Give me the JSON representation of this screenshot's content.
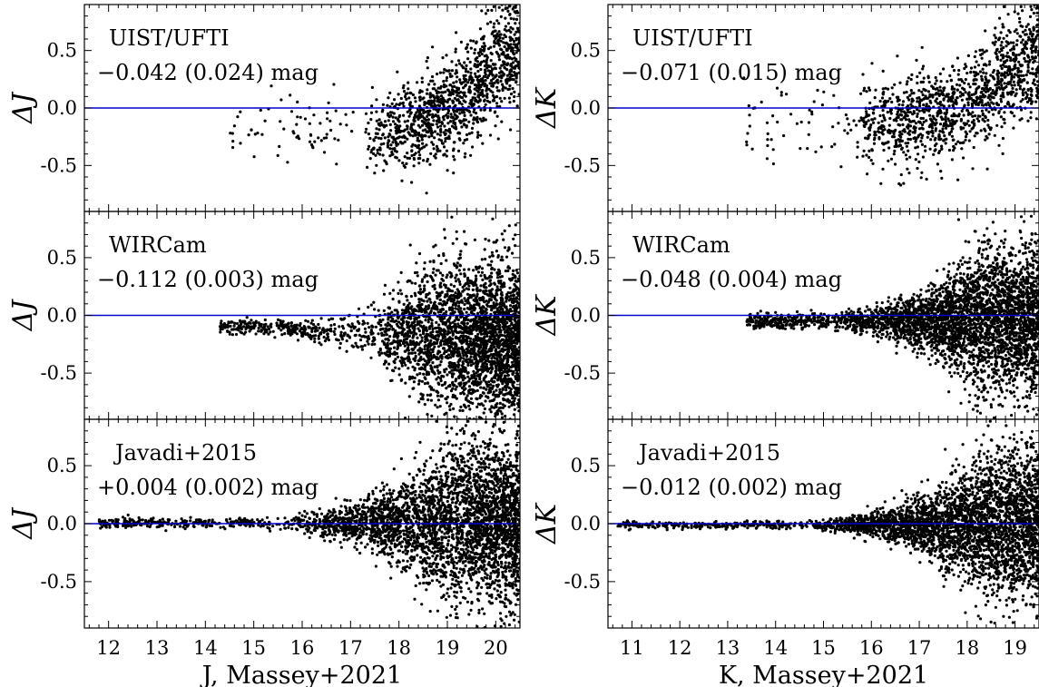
{
  "chart_data": [
    {
      "type": "scatter",
      "panel": "J-UIST/UFTI",
      "ylabel": "ΔJ",
      "xlabel": "",
      "xlim": [
        11.5,
        20.5
      ],
      "ylim": [
        -0.9,
        0.9
      ],
      "xticks": [
        12,
        13,
        14,
        15,
        16,
        17,
        18,
        19,
        20
      ],
      "yticks": [
        -0.5,
        0.0,
        0.5
      ],
      "ytick_labels": [
        "-0.5",
        "0.0",
        "0.5"
      ],
      "reference_line": 0.0,
      "line_color": "#0000cc",
      "annotation_name": "UIST/UFTI",
      "annotation_offset": "−0.042 (0.024) mag",
      "offset_value": -0.042,
      "offset_error": 0.024,
      "x_range_populated": [
        14.5,
        20.5
      ],
      "grid": false
    },
    {
      "type": "scatter",
      "panel": "J-WIRCam",
      "ylabel": "ΔJ",
      "xlabel": "",
      "xlim": [
        11.5,
        20.5
      ],
      "ylim": [
        -0.9,
        0.9
      ],
      "xticks": [
        12,
        13,
        14,
        15,
        16,
        17,
        18,
        19,
        20
      ],
      "yticks": [
        -0.5,
        0.0,
        0.5
      ],
      "ytick_labels": [
        "-0.5",
        "0.0",
        "0.5"
      ],
      "reference_line": 0.0,
      "line_color": "#0000cc",
      "annotation_name": "WIRCam",
      "annotation_offset": "−0.112 (0.003) mag",
      "offset_value": -0.112,
      "offset_error": 0.003,
      "x_range_populated": [
        14.2,
        20.5
      ],
      "grid": false
    },
    {
      "type": "scatter",
      "panel": "J-Javadi+2015",
      "ylabel": "ΔJ",
      "xlabel": "J, Massey+2021",
      "xlim": [
        11.5,
        20.5
      ],
      "ylim": [
        -0.9,
        0.9
      ],
      "xticks": [
        12,
        13,
        14,
        15,
        16,
        17,
        18,
        19,
        20
      ],
      "xtick_labels": [
        "12",
        "13",
        "14",
        "15",
        "16",
        "17",
        "18",
        "19",
        "20"
      ],
      "yticks": [
        -0.5,
        0.0,
        0.5
      ],
      "ytick_labels": [
        "-0.5",
        "0.0",
        "0.5"
      ],
      "reference_line": 0.0,
      "line_color": "#0000cc",
      "annotation_name": "Javadi+2015",
      "annotation_offset": "+0.004 (0.002) mag",
      "offset_value": 0.004,
      "offset_error": 0.002,
      "x_range_populated": [
        11.8,
        20.5
      ],
      "grid": false
    },
    {
      "type": "scatter",
      "panel": "K-UIST/UFTI",
      "ylabel": "ΔK",
      "xlabel": "",
      "xlim": [
        10.5,
        19.5
      ],
      "ylim": [
        -0.9,
        0.9
      ],
      "xticks": [
        11,
        12,
        13,
        14,
        15,
        16,
        17,
        18,
        19
      ],
      "yticks": [
        -0.5,
        0.0,
        0.5
      ],
      "ytick_labels": [
        "-0.5",
        "0.0",
        "0.5"
      ],
      "reference_line": 0.0,
      "line_color": "#0000cc",
      "annotation_name": "UIST/UFTI",
      "annotation_offset": "−0.071 (0.015) mag",
      "offset_value": -0.071,
      "offset_error": 0.015,
      "x_range_populated": [
        13.3,
        19.5
      ],
      "grid": false
    },
    {
      "type": "scatter",
      "panel": "K-WIRCam",
      "ylabel": "ΔK",
      "xlabel": "",
      "xlim": [
        10.5,
        19.5
      ],
      "ylim": [
        -0.9,
        0.9
      ],
      "xticks": [
        11,
        12,
        13,
        14,
        15,
        16,
        17,
        18,
        19
      ],
      "yticks": [
        -0.5,
        0.0,
        0.5
      ],
      "ytick_labels": [
        "-0.5",
        "0.0",
        "0.5"
      ],
      "reference_line": 0.0,
      "line_color": "#0000cc",
      "annotation_name": "WIRCam",
      "annotation_offset": "−0.048 (0.004) mag",
      "offset_value": -0.048,
      "offset_error": 0.004,
      "x_range_populated": [
        13.4,
        19.5
      ],
      "grid": false
    },
    {
      "type": "scatter",
      "panel": "K-Javadi+2015",
      "ylabel": "ΔK",
      "xlabel": "K, Massey+2021",
      "xlim": [
        10.5,
        19.5
      ],
      "ylim": [
        -0.9,
        0.9
      ],
      "xticks": [
        11,
        12,
        13,
        14,
        15,
        16,
        17,
        18,
        19
      ],
      "xtick_labels": [
        "11",
        "12",
        "13",
        "14",
        "15",
        "16",
        "17",
        "18",
        "19"
      ],
      "yticks": [
        -0.5,
        0.0,
        0.5
      ],
      "ytick_labels": [
        "-0.5",
        "0.0",
        "0.5"
      ],
      "reference_line": 0.0,
      "line_color": "#0000cc",
      "annotation_name": "Javadi+2015",
      "annotation_offset": "−0.012 (0.002) mag",
      "offset_value": -0.012,
      "offset_error": 0.002,
      "x_range_populated": [
        10.7,
        19.5
      ],
      "grid": false
    }
  ]
}
